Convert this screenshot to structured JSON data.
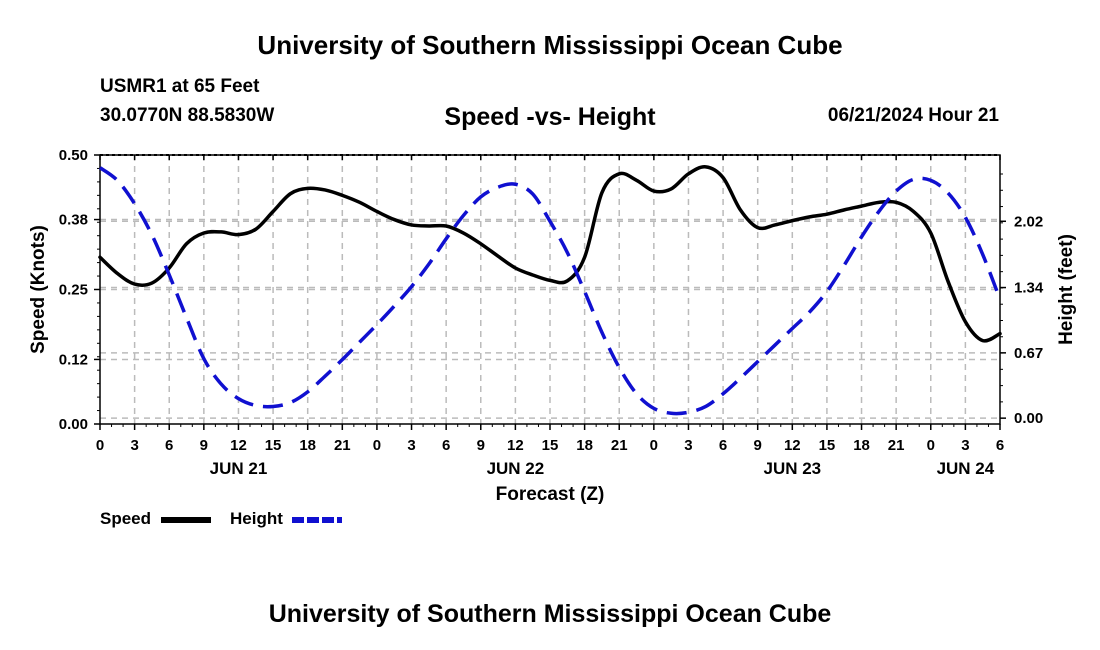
{
  "header": {
    "title": "University of Southern Mississippi Ocean Cube",
    "station": "USMR1 at 65 Feet",
    "coords": "30.0770N  88.5830W",
    "datetime": "06/21/2024 Hour 21",
    "footer_title": "University of Southern Mississippi Ocean Cube"
  },
  "legend": {
    "speed_label": "Speed",
    "height_label": "Height"
  },
  "colors": {
    "speed": "#000000",
    "height": "#1010d0",
    "grid": "#bbbbbb"
  },
  "chart_data": {
    "type": "line",
    "title": "Speed -vs- Height",
    "xlabel": "Forecast (Z)",
    "ylabel": "Speed (Knots)",
    "y2label": "Height (feet)",
    "xlim": [
      0,
      78
    ],
    "ylim": [
      0,
      0.5
    ],
    "y2lim": [
      -0.06,
      2.7
    ],
    "x_ticks": [
      0,
      3,
      6,
      9,
      12,
      15,
      18,
      21,
      24,
      27,
      30,
      33,
      36,
      39,
      42,
      45,
      48,
      51,
      54,
      57,
      60,
      63,
      66,
      69,
      72,
      75,
      78
    ],
    "x_tick_labels": [
      "0",
      "3",
      "6",
      "9",
      "12",
      "15",
      "18",
      "21",
      "0",
      "3",
      "6",
      "9",
      "12",
      "15",
      "18",
      "21",
      "0",
      "3",
      "6",
      "9",
      "12",
      "15",
      "18",
      "21",
      "0",
      "3",
      "6"
    ],
    "date_labels": [
      {
        "x": 12,
        "text": "JUN 21"
      },
      {
        "x": 36,
        "text": "JUN 22"
      },
      {
        "x": 60,
        "text": "JUN 23"
      },
      {
        "x": 75,
        "text": "JUN 24"
      }
    ],
    "y_ticks": [
      0.0,
      0.12,
      0.25,
      0.38,
      0.5
    ],
    "y_tick_labels": [
      "0.00",
      "0.12",
      "0.25",
      "0.38",
      "0.50"
    ],
    "y2_ticks": [
      0.0,
      0.67,
      1.34,
      2.02
    ],
    "y2_tick_labels": [
      "0.00",
      "0.67",
      "1.34",
      "2.02"
    ],
    "series": [
      {
        "name": "Speed",
        "axis": "left",
        "style": "solid",
        "x": [
          0,
          1.5,
          3,
          4.5,
          6,
          7.5,
          9,
          10.5,
          12,
          13.5,
          15,
          16.5,
          18,
          19.5,
          21,
          22.5,
          24,
          25.5,
          27,
          28.5,
          30,
          31.5,
          33,
          34.5,
          36,
          37.5,
          39,
          40.5,
          42,
          43.5,
          45,
          46.5,
          48,
          49.5,
          51,
          52.5,
          54,
          55.5,
          57,
          58.5,
          60,
          61.5,
          63,
          64.5,
          66,
          67.5,
          69,
          70.5,
          72,
          73.5,
          75,
          76.5,
          78
        ],
        "values": [
          0.31,
          0.28,
          0.26,
          0.262,
          0.29,
          0.335,
          0.355,
          0.357,
          0.352,
          0.362,
          0.395,
          0.428,
          0.438,
          0.435,
          0.425,
          0.412,
          0.395,
          0.38,
          0.37,
          0.368,
          0.368,
          0.355,
          0.335,
          0.312,
          0.29,
          0.277,
          0.267,
          0.266,
          0.31,
          0.43,
          0.465,
          0.453,
          0.433,
          0.437,
          0.465,
          0.478,
          0.458,
          0.398,
          0.365,
          0.37,
          0.378,
          0.385,
          0.39,
          0.398,
          0.405,
          0.412,
          0.412,
          0.395,
          0.355,
          0.265,
          0.19,
          0.155,
          0.168
        ]
      },
      {
        "name": "Height",
        "axis": "right",
        "style": "dashed",
        "x": [
          0,
          1.5,
          3,
          4.5,
          6,
          7.5,
          9,
          10.5,
          12,
          13.5,
          15,
          16.5,
          18,
          19.5,
          21,
          22.5,
          24,
          25.5,
          27,
          28.5,
          30,
          31.5,
          33,
          34.5,
          36,
          37.5,
          39,
          40.5,
          42,
          43.5,
          45,
          46.5,
          48,
          49.5,
          51,
          52.5,
          54,
          55.5,
          57,
          58.5,
          60,
          61.5,
          63,
          64.5,
          66,
          67.5,
          69,
          70.5,
          72,
          73.5,
          75,
          76.5,
          78
        ],
        "values": [
          2.57,
          2.44,
          2.2,
          1.88,
          1.47,
          1.03,
          0.61,
          0.35,
          0.2,
          0.13,
          0.12,
          0.16,
          0.27,
          0.43,
          0.6,
          0.78,
          0.96,
          1.15,
          1.35,
          1.58,
          1.84,
          2.08,
          2.27,
          2.37,
          2.4,
          2.3,
          2.02,
          1.7,
          1.3,
          0.88,
          0.52,
          0.25,
          0.1,
          0.05,
          0.06,
          0.12,
          0.25,
          0.41,
          0.58,
          0.75,
          0.92,
          1.09,
          1.3,
          1.57,
          1.86,
          2.12,
          2.33,
          2.45,
          2.44,
          2.31,
          2.06,
          1.68,
          1.22
        ]
      }
    ]
  }
}
